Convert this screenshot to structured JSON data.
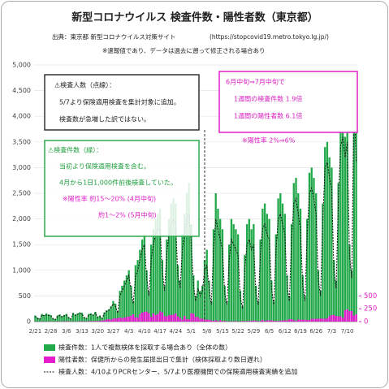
{
  "chart_data": {
    "type": "bar",
    "title": "新型コロナウイルス 検査件数・陽性者数（東京都）",
    "subtitle": "出典：東京都 新型コロナウイルス対策サイト",
    "source_url": "(https://stopcovid19.metro.tokyo.lg.jp/)",
    "note": "※速報値であり、データは過去に遡って修正される場合あり",
    "categories": [
      "2/21",
      null,
      null,
      null,
      null,
      null,
      null,
      "2/28",
      null,
      null,
      null,
      null,
      null,
      null,
      "3/6",
      null,
      null,
      null,
      null,
      null,
      null,
      "3/13",
      null,
      null,
      null,
      null,
      null,
      null,
      "3/20",
      null,
      null,
      null,
      null,
      null,
      null,
      "3/27",
      null,
      null,
      null,
      null,
      null,
      null,
      "4/3",
      null,
      null,
      null,
      null,
      null,
      null,
      "4/10",
      null,
      null,
      null,
      null,
      null,
      null,
      "4/17",
      null,
      null,
      null,
      null,
      null,
      null,
      "4/24",
      null,
      null,
      null,
      null,
      null,
      null,
      "5/1",
      null,
      null,
      null,
      null,
      null,
      null,
      "5/8",
      null,
      null,
      null,
      null,
      null,
      null,
      "5/15",
      null,
      null,
      null,
      null,
      null,
      null,
      "5/22",
      null,
      null,
      null,
      null,
      null,
      null,
      "5/29",
      null,
      null,
      null,
      null,
      null,
      null,
      "6/5",
      null,
      null,
      null,
      null,
      null,
      null,
      "6/12",
      null,
      null,
      null,
      null,
      null,
      null,
      "6/19",
      null,
      null,
      null,
      null,
      null,
      null,
      "6/26",
      null,
      null,
      null,
      null,
      null,
      null,
      "7/3",
      null,
      null,
      null,
      null,
      null,
      null,
      "7/10",
      null,
      null,
      null,
      null
    ],
    "series": [
      {
        "name": "検査件数：1人で複数検体を採取する場合あり（全体の数）",
        "color": "#22a94a",
        "kind": "bar",
        "values": [
          120,
          80,
          60,
          150,
          130,
          160,
          140,
          130,
          70,
          50,
          120,
          140,
          110,
          130,
          150,
          90,
          60,
          170,
          140,
          160,
          180,
          170,
          90,
          70,
          150,
          160,
          140,
          190,
          100,
          120,
          80,
          180,
          220,
          240,
          300,
          400,
          350,
          200,
          600,
          700,
          800,
          900,
          1000,
          700,
          400,
          1100,
          1200,
          1400,
          1600,
          1700,
          1000,
          600,
          1500,
          1800,
          2000,
          2100,
          2200,
          1200,
          700,
          1600,
          2000,
          2300,
          2400,
          2300,
          1100,
          800,
          1700,
          2100,
          2500,
          2700,
          1900,
          900,
          500,
          800,
          600,
          700,
          1200,
          1400,
          800,
          400,
          1800,
          2500,
          2200,
          2000,
          1800,
          700,
          400,
          1500,
          2000,
          1900,
          1800,
          1700,
          600,
          300,
          1300,
          1900,
          2000,
          1800,
          1900,
          700,
          400,
          1600,
          2200,
          2300,
          2100,
          2000,
          800,
          400,
          1700,
          2400,
          2500,
          2300,
          2100,
          900,
          500,
          1900,
          2700,
          2800,
          2500,
          2200,
          900,
          500,
          2000,
          2900,
          3000,
          2800,
          2500,
          1000,
          600,
          2300,
          3400,
          3500,
          3200,
          3000,
          1200,
          800,
          2700,
          3800,
          4000,
          3600,
          3900,
          1500,
          1000,
          4700,
          4000
        ]
      },
      {
        "name": "陽性者数：保健所からの発生届提出日で集計（検体採取より数日遅れ）",
        "color": "#e41ccd",
        "kind": "bar",
        "axis": "y2",
        "values": [
          3,
          3,
          1,
          5,
          3,
          2,
          4,
          2,
          3,
          1,
          6,
          4,
          2,
          8,
          5,
          6,
          3,
          4,
          3,
          2,
          6,
          7,
          5,
          4,
          8,
          10,
          7,
          12,
          10,
          15,
          20,
          25,
          41,
          47,
          40,
          60,
          63,
          68,
          78,
          70,
          80,
          90,
          100,
          116,
          143,
          83,
          80,
          144,
          178,
          189,
          197,
          166,
          91,
          161,
          127,
          149,
          201,
          181,
          107,
          102,
          123,
          132,
          134,
          161,
          103,
          72,
          39,
          112,
          47,
          46,
          165,
          154,
          91,
          87,
          58,
          57,
          38,
          39,
          36,
          22,
          15,
          28,
          10,
          30,
          9,
          14,
          5,
          5,
          5,
          5,
          11,
          3,
          2,
          14,
          8,
          10,
          11,
          15,
          22,
          14,
          5,
          13,
          34,
          12,
          28,
          20,
          26,
          14,
          13,
          12,
          18,
          22,
          25,
          24,
          47,
          48,
          27,
          16,
          41,
          35,
          39,
          35,
          29,
          31,
          55,
          54,
          54,
          57,
          60,
          58,
          54,
          67,
          107,
          124,
          131,
          111,
          102,
          106,
          75,
          224,
          243,
          206,
          206,
          119,
          143
        ]
      },
      {
        "name": "検査人数：4/10よりPCRセンター、5/7より医療機関での保険適用検査実績を追加",
        "color": "#111111",
        "kind": "line",
        "values": [
          100,
          60,
          40,
          130,
          110,
          130,
          120,
          110,
          50,
          40,
          100,
          120,
          90,
          110,
          130,
          70,
          50,
          150,
          120,
          140,
          160,
          150,
          70,
          60,
          130,
          140,
          120,
          170,
          80,
          100,
          60,
          160,
          200,
          220,
          270,
          350,
          300,
          170,
          500,
          600,
          700,
          800,
          900,
          600,
          350,
          900,
          1000,
          1200,
          1400,
          1500,
          850,
          500,
          1200,
          1500,
          1700,
          1800,
          1800,
          1000,
          600,
          1300,
          1700,
          1900,
          2000,
          1900,
          900,
          650,
          1400,
          1700,
          2000,
          2100,
          1500,
          700,
          400,
          650,
          500,
          600,
          1000,
          1100,
          650,
          330,
          1400,
          2000,
          1800,
          1600,
          1400,
          550,
          330,
          1200,
          1600,
          1500,
          1400,
          1300,
          480,
          250,
          1000,
          1500,
          1600,
          1400,
          1500,
          560,
          330,
          1300,
          1800,
          1900,
          1700,
          1600,
          650,
          330,
          1400,
          2000,
          2100,
          1900,
          1700,
          700,
          400,
          1600,
          2300,
          2400,
          2100,
          1800,
          700,
          400,
          1700,
          2500,
          2600,
          2400,
          2100,
          800,
          500,
          2000,
          3000,
          3100,
          2800,
          2600,
          1000,
          650,
          2400,
          3400,
          3600,
          3200,
          3500,
          1300,
          850,
          4300,
          3100
        ]
      }
    ],
    "ylim": [
      0,
      5000
    ],
    "yticks": [
      0,
      500,
      {
        "value": 1000,
        "label": "1,000"
      },
      {
        "value": 1500,
        "label": "1,500"
      },
      {
        "value": 2000,
        "label": "2,000"
      },
      {
        "value": 2500,
        "label": "2,500"
      },
      {
        "value": 3000,
        "label": "3,000"
      },
      {
        "value": 3500,
        "label": "3,500"
      },
      {
        "value": 4000,
        "label": "4,000"
      },
      {
        "value": 4500,
        "label": "4,500"
      },
      {
        "value": 5000,
        "label": "5,000"
      }
    ],
    "y2lim": [
      0,
      5000
    ],
    "y2ticks": [
      0,
      250,
      500
    ],
    "annotations": [
      [
        "⚠検査人数（点線）：",
        "5/7より保険適用検査を集計対象に追加。",
        "検査数が急増した訳ではない。"
      ],
      [
        "⚠検査件数（緑）：",
        "当初より保険適用検査を含む。",
        "4月から1日1,000件前後検査していた。",
        "※陽性率 約15～20% (4月中旬)",
        "約1～2%   (5月中旬)"
      ],
      [
        "6月中旬⇒7月中旬で",
        "1週間の検査件数 1.9倍",
        "1週間の陽性者数 6.1倍",
        "※陽性率 2%⇒6%"
      ]
    ]
  }
}
